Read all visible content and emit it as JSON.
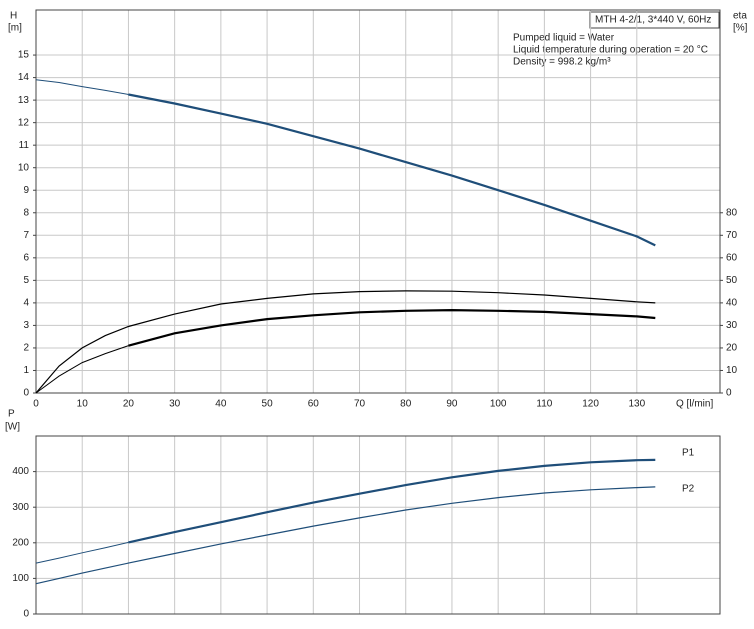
{
  "chart_data": [
    {
      "type": "line",
      "title": "MTH 4-2/1, 3*440 V, 60Hz",
      "annotations": [
        "Pumped liquid = Water",
        "Liquid temperature during operation = 20 °C",
        "Density = 998.2 kg/m³"
      ],
      "ylabel": "H",
      "yunit": "[m]",
      "y2label": "eta",
      "y2unit": "[%]",
      "xlabel": "Q [l/min]",
      "x": [
        0,
        5,
        10,
        15,
        20,
        30,
        40,
        50,
        60,
        70,
        80,
        90,
        100,
        110,
        120,
        130,
        134
      ],
      "xlim": [
        0,
        148
      ],
      "xticks": [
        0,
        10,
        20,
        30,
        40,
        50,
        60,
        70,
        80,
        90,
        100,
        110,
        120,
        130
      ],
      "ylim": [
        0,
        17
      ],
      "yticks": [
        0,
        1,
        2,
        3,
        4,
        5,
        6,
        7,
        8,
        9,
        10,
        11,
        12,
        13,
        14,
        15
      ],
      "y2lim": [
        0,
        170
      ],
      "y2ticks": [
        0,
        10,
        20,
        30,
        40,
        50,
        60,
        70,
        80
      ],
      "grid": true,
      "series": [
        {
          "color": "#1f4e79",
          "bold_from_x": 20,
          "values": [
            13.9,
            13.78,
            13.6,
            13.43,
            13.25,
            12.85,
            12.4,
            11.95,
            11.4,
            10.85,
            10.25,
            9.65,
            9.0,
            8.35,
            7.65,
            6.95,
            6.55
          ]
        },
        {
          "color": "#000000",
          "axis": "y2",
          "values": [
            0,
            12,
            20,
            25.5,
            29.5,
            35,
            39.5,
            42,
            44,
            45,
            45.3,
            45.2,
            44.5,
            43.5,
            42,
            40.5,
            40
          ]
        },
        {
          "color": "#000000",
          "axis": "y2",
          "bold_from_x": 20,
          "values": [
            0,
            7.5,
            13.5,
            17.5,
            21,
            26.5,
            30,
            32.8,
            34.5,
            35.8,
            36.5,
            36.8,
            36.5,
            36,
            35,
            34,
            33.3
          ]
        }
      ]
    },
    {
      "type": "line",
      "ylabel": "P",
      "yunit": "[W]",
      "x": [
        0,
        5,
        10,
        15,
        20,
        30,
        40,
        50,
        60,
        70,
        80,
        90,
        100,
        110,
        120,
        130,
        134
      ],
      "xlim": [
        0,
        148
      ],
      "ylim": [
        0,
        500
      ],
      "yticks": [
        0,
        100,
        200,
        300,
        400
      ],
      "grid": true,
      "series": [
        {
          "name": "P1",
          "color": "#1f4e79",
          "bold_from_x": 20,
          "values": [
            143,
            157,
            172,
            186,
            201,
            230,
            258,
            286,
            313,
            338,
            362,
            384,
            402,
            416,
            426,
            432,
            433
          ]
        },
        {
          "name": "P2",
          "color": "#1f4e79",
          "values": [
            85,
            100,
            115,
            129,
            143,
            170,
            197,
            222,
            247,
            270,
            292,
            311,
            327,
            340,
            349,
            355,
            357
          ]
        }
      ]
    }
  ]
}
